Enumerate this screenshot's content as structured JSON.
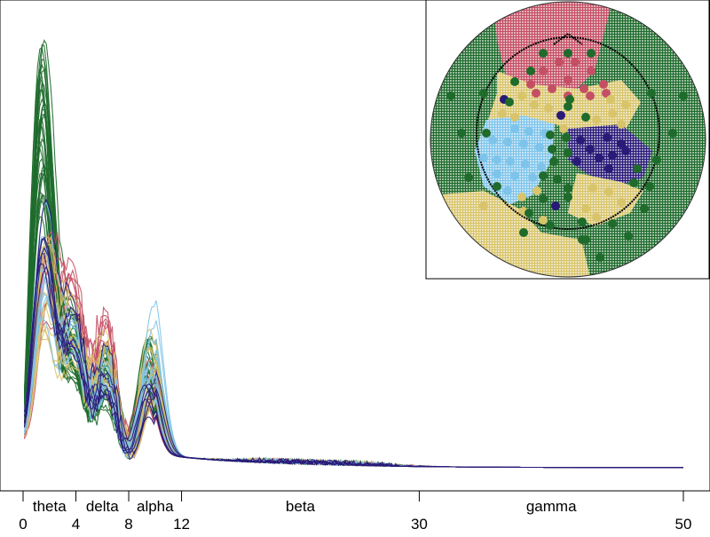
{
  "chart_data": {
    "type": "line",
    "title": "",
    "xlabel": "",
    "ylabel": "",
    "xlim": [
      0,
      50
    ],
    "x_ticks": [
      0,
      4,
      8,
      12,
      30,
      50
    ],
    "band_labels": [
      {
        "label": "theta",
        "from": 0,
        "to": 4
      },
      {
        "label": "delta",
        "from": 4,
        "to": 8
      },
      {
        "label": "alpha",
        "from": 8,
        "to": 12
      },
      {
        "label": "beta",
        "from": 12,
        "to": 30
      },
      {
        "label": "gamma",
        "from": 30,
        "to": 50
      }
    ],
    "y_axis_visible": false,
    "series_groups": [
      {
        "name": "green cluster",
        "color": "#1e6b2c",
        "count": 34,
        "peak_x": 1.4,
        "peak_y": 1.0,
        "shoulder_y": 0.3,
        "alpha_y": 0.28
      },
      {
        "name": "red cluster",
        "color": "#c44f64",
        "count": 8,
        "peak_x": 1.7,
        "peak_y": 0.53,
        "shoulder_y": 0.39,
        "alpha_y": 0.24
      },
      {
        "name": "yellow cluster",
        "color": "#d8c46a",
        "count": 14,
        "peak_x": 1.6,
        "peak_y": 0.53,
        "shoulder_y": 0.34,
        "alpha_y": 0.31
      },
      {
        "name": "light-blue cluster",
        "color": "#7ec4ea",
        "count": 10,
        "peak_x": 1.5,
        "peak_y": 0.6,
        "shoulder_y": 0.3,
        "alpha_y": 0.39
      },
      {
        "name": "navy cluster",
        "color": "#2a1a78",
        "count": 7,
        "peak_x": 1.5,
        "peak_y": 0.62,
        "shoulder_y": 0.33,
        "alpha_y": 0.2
      }
    ]
  },
  "inset": {
    "type": "topographic scalp map",
    "region_colors": {
      "red": "#c44f64",
      "yellow": "#d8c46a",
      "light-blue": "#7ec4ea",
      "navy": "#2a1a78",
      "green": "#1e6b2c"
    }
  }
}
